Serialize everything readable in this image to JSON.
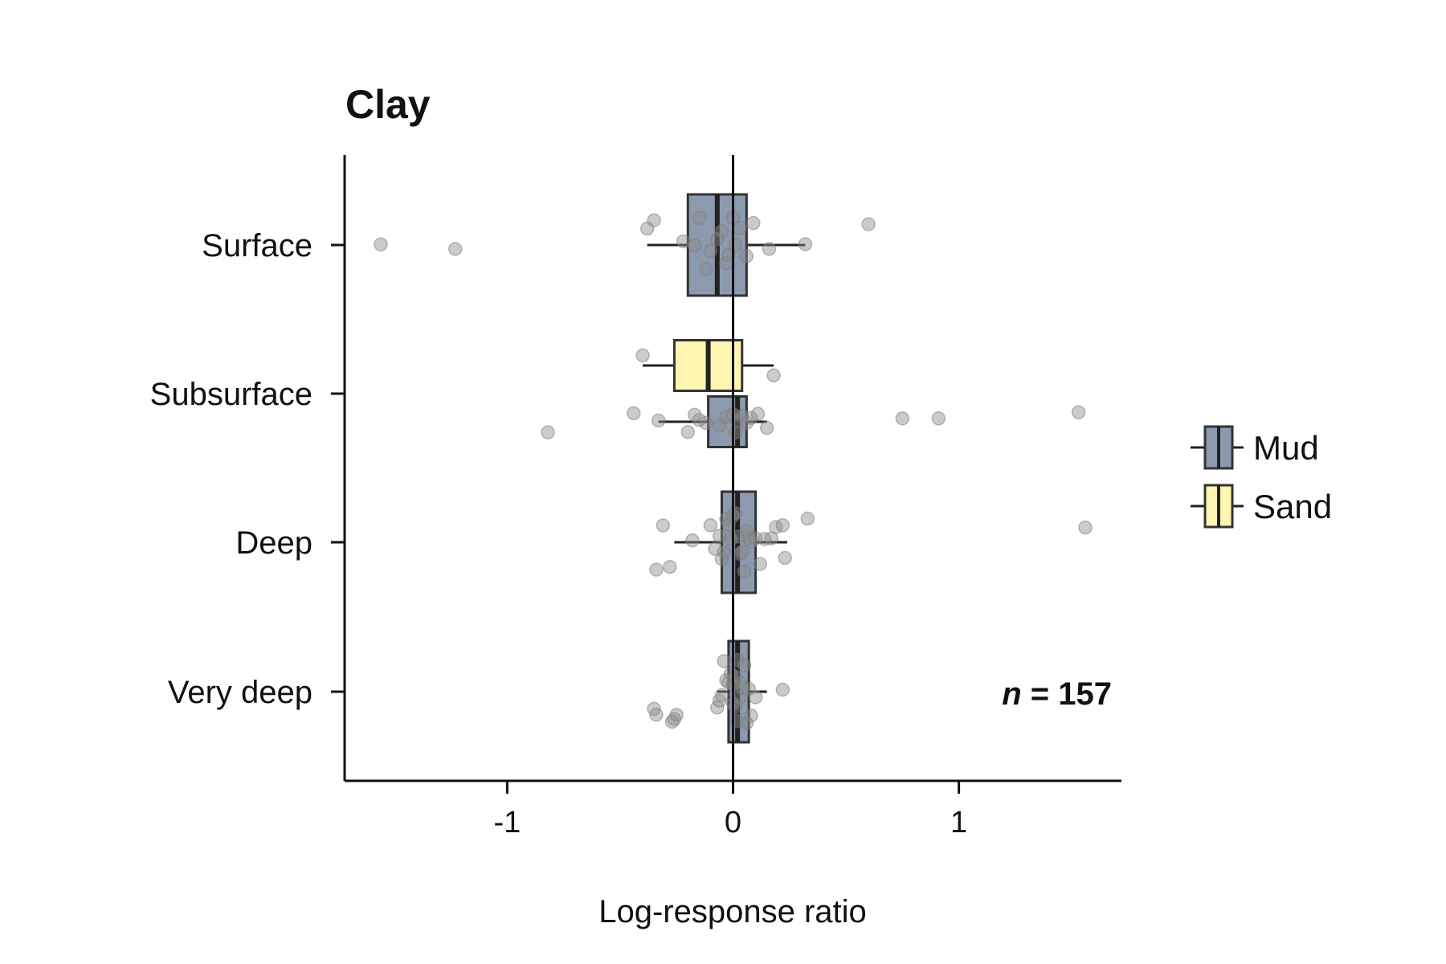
{
  "chart_data": {
    "type": "box",
    "orientation": "horizontal",
    "title": "Clay",
    "xlabel": "Log-response ratio",
    "ylabel": "",
    "xlim": [
      -1.72,
      1.72
    ],
    "xticks": [
      -1,
      0,
      1
    ],
    "xtick_labels": [
      "-1",
      "0",
      "1"
    ],
    "categories": [
      "Surface",
      "Subsurface",
      "Deep",
      "Very deep"
    ],
    "reference_line_x": 0,
    "legend": {
      "position": "right",
      "entries": [
        {
          "name": "Mud",
          "color": "#8c9ab0"
        },
        {
          "name": "Sand",
          "color": "#fdf5b0"
        }
      ]
    },
    "annotation": {
      "italic_part": "n",
      "text_part": " = 157"
    },
    "boxes": [
      {
        "category": "Surface",
        "group": "Mud",
        "whisker_low": -0.38,
        "q1": -0.2,
        "median": -0.07,
        "q3": 0.06,
        "whisker_high": 0.32
      },
      {
        "category": "Subsurface",
        "group": "Sand",
        "whisker_low": -0.4,
        "q1": -0.26,
        "median": -0.11,
        "q3": 0.04,
        "whisker_high": 0.18
      },
      {
        "category": "Subsurface",
        "group": "Mud",
        "whisker_low": -0.33,
        "q1": -0.11,
        "median": 0.02,
        "q3": 0.06,
        "whisker_high": 0.15
      },
      {
        "category": "Deep",
        "group": "Mud",
        "whisker_low": -0.26,
        "q1": -0.05,
        "median": 0.02,
        "q3": 0.1,
        "whisker_high": 0.24
      },
      {
        "category": "Very deep",
        "group": "Mud",
        "whisker_low": -0.07,
        "q1": -0.02,
        "median": 0.02,
        "q3": 0.07,
        "whisker_high": 0.15
      }
    ],
    "points": [
      {
        "category": "Surface",
        "group": "Mud",
        "values": [
          -1.56,
          -1.23,
          -0.35,
          -0.38,
          -0.22,
          -0.17,
          -0.15,
          -0.12,
          -0.1,
          -0.07,
          -0.05,
          -0.03,
          -0.02,
          0.0,
          0.01,
          0.03,
          0.06,
          0.09,
          0.16,
          0.32,
          0.6
        ]
      },
      {
        "category": "Subsurface",
        "group": "Sand",
        "values": [
          -0.4,
          0.18
        ]
      },
      {
        "category": "Subsurface",
        "group": "Mud",
        "values": [
          -0.82,
          -0.44,
          -0.33,
          -0.2,
          -0.17,
          -0.15,
          -0.12,
          -0.06,
          -0.03,
          0.0,
          0.01,
          0.02,
          0.04,
          0.06,
          0.08,
          0.11,
          0.15,
          0.75,
          0.91,
          1.53
        ]
      },
      {
        "category": "Deep",
        "group": "Mud",
        "values": [
          -0.34,
          -0.31,
          -0.28,
          -0.18,
          -0.1,
          -0.08,
          -0.06,
          -0.05,
          -0.04,
          -0.03,
          -0.02,
          -0.01,
          0.0,
          0.01,
          0.02,
          0.03,
          0.04,
          0.05,
          0.06,
          0.07,
          0.08,
          0.1,
          0.12,
          0.14,
          0.17,
          0.19,
          0.22,
          0.23,
          0.33,
          1.56
        ]
      },
      {
        "category": "Very deep",
        "group": "Mud",
        "values": [
          -0.35,
          -0.34,
          -0.27,
          -0.26,
          -0.25,
          -0.07,
          -0.06,
          -0.05,
          -0.04,
          -0.03,
          -0.02,
          -0.01,
          0.0,
          0.0,
          0.01,
          0.01,
          0.02,
          0.02,
          0.03,
          0.03,
          0.04,
          0.05,
          0.06,
          0.07,
          0.08,
          0.1,
          0.22
        ]
      }
    ]
  }
}
